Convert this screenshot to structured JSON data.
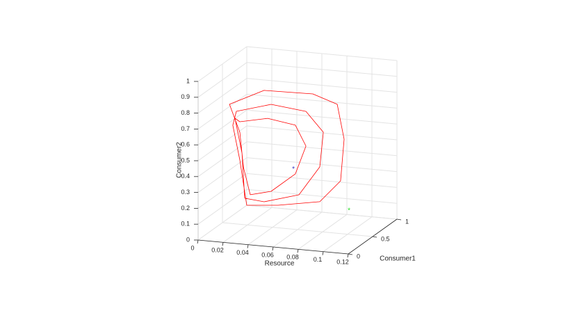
{
  "chart_data": {
    "type": "line3d",
    "xlabel": "Resource",
    "ylabel": "Consumer1",
    "zlabel": "Consumer2",
    "xlim": [
      0,
      0.12
    ],
    "ylim": [
      0,
      1
    ],
    "zlim": [
      0,
      1
    ],
    "xticks": [
      0,
      0.02,
      0.04,
      0.06,
      0.08,
      0.1,
      0.12
    ],
    "yticks": [
      0,
      0.5,
      1
    ],
    "zticks": [
      0,
      0.1,
      0.2,
      0.3,
      0.4,
      0.5,
      0.6,
      0.7,
      0.8,
      0.9,
      1
    ],
    "grid": true,
    "series": [
      {
        "color": "#ff0000",
        "x": [
          0.0056,
          0.0333,
          0.0722,
          0.0917,
          0.0972,
          0.0944,
          0.0778,
          0.0444,
          0.0194,
          0.0139,
          0.0083,
          0.0111,
          0.0389,
          0.0667,
          0.0806,
          0.0778,
          0.0611,
          0.0333,
          0.0178,
          0.0156,
          0.01,
          0.0139,
          0.0361,
          0.0583,
          0.0667,
          0.0583,
          0.0389,
          0.0222,
          0.0167,
          0.0139
        ],
        "y": [
          0.5,
          0.5,
          0.5,
          0.5,
          0.5,
          0.5,
          0.5,
          0.5,
          0.5,
          0.5,
          0.5,
          0.5,
          0.5,
          0.5,
          0.5,
          0.5,
          0.5,
          0.5,
          0.5,
          0.5,
          0.5,
          0.5,
          0.5,
          0.5,
          0.5,
          0.5,
          0.5,
          0.5,
          0.5,
          0.5
        ],
        "z": [
          0.75,
          0.858,
          0.864,
          0.813,
          0.597,
          0.332,
          0.189,
          0.142,
          0.124,
          0.405,
          0.62,
          0.71,
          0.774,
          0.75,
          0.629,
          0.408,
          0.22,
          0.156,
          0.167,
          0.45,
          0.665,
          0.646,
          0.684,
          0.657,
          0.531,
          0.35,
          0.226,
          0.192,
          0.363,
          0.58
        ]
      }
    ],
    "points": [
      {
        "color": "#3030c0",
        "marker": "*",
        "x": 0.0567,
        "y": 0.5,
        "z": 0.383
      },
      {
        "color": "#22dd22",
        "marker": "*",
        "x": 0.0817,
        "y": 1,
        "z": 0.029
      }
    ]
  }
}
